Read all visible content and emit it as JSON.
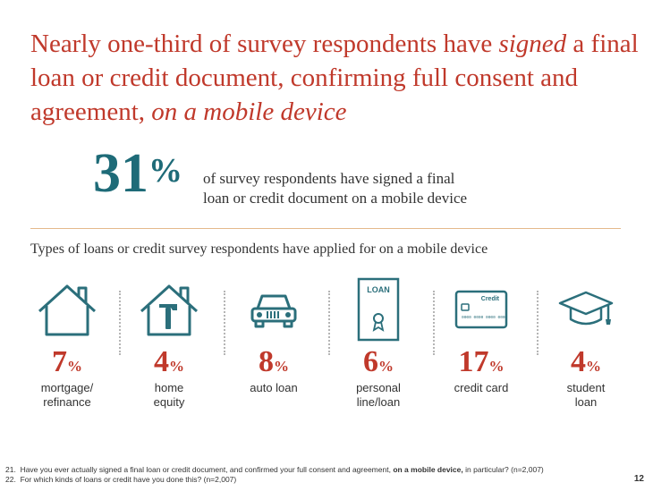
{
  "title": {
    "part1": "Nearly one-third of survey respondents have ",
    "part2_italic": "signed",
    "part3": " a final loan or credit document, confirming full consent and agreement, ",
    "part4_italic": "on a mobile device"
  },
  "headline_stat": {
    "value": "31",
    "unit": "%",
    "text_line1": "of survey respondents have signed a final",
    "text_line2": "loan or credit document on a mobile device"
  },
  "subtitle": "Types of loans or credit survey respondents have applied for on a mobile device",
  "categories": [
    {
      "icon": "house-icon",
      "value": "7",
      "unit": "%",
      "label_line1": "mortgage/",
      "label_line2": "refinance"
    },
    {
      "icon": "house-hammer-icon",
      "value": "4",
      "unit": "%",
      "label_line1": "home",
      "label_line2": "equity"
    },
    {
      "icon": "car-icon",
      "value": "8",
      "unit": "%",
      "label_line1": "auto loan",
      "label_line2": ""
    },
    {
      "icon": "loan-document-icon",
      "value": "6",
      "unit": "%",
      "label_line1": "personal",
      "label_line2": "line/loan"
    },
    {
      "icon": "credit-card-icon",
      "value": "17",
      "unit": "%",
      "label_line1": "credit card",
      "label_line2": ""
    },
    {
      "icon": "graduation-cap-icon",
      "value": "4",
      "unit": "%",
      "label_line1": "student",
      "label_line2": "loan"
    }
  ],
  "icon_text": {
    "loan_doc": "LOAN",
    "credit_card": "Credit",
    "card_digits": "0000 0000 0000 0000"
  },
  "footnotes": {
    "n21_number": "21.",
    "n21_text_a": "Have you ever actually signed a final loan or credit document, and confirmed your full consent and agreement,",
    "n21_bold": "on a mobile device,",
    "n21_text_b": "in particular? (n=2,007)",
    "n22_number": "22.",
    "n22_text": "For which kinds of loans or credit have you done this? (n=2,007)"
  },
  "page_number": "12",
  "colors": {
    "title_red": "#c0392b",
    "stat_teal": "#1e6b78",
    "icon_teal": "#2b6f7b",
    "divider": "#e4b98b"
  }
}
